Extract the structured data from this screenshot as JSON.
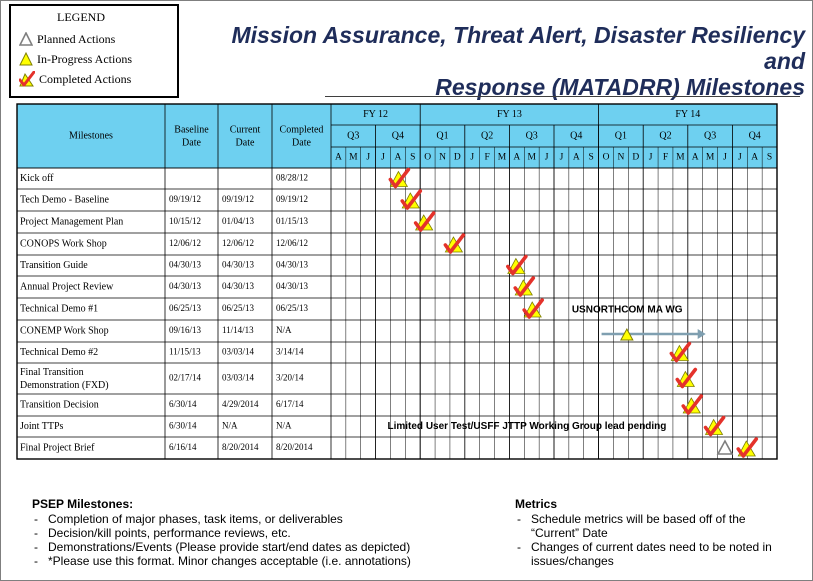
{
  "legend": {
    "title": "LEGEND",
    "items": [
      {
        "label": "Planned Actions",
        "icon": "planned-triangle-icon"
      },
      {
        "label": "In-Progress Actions",
        "icon": "in-progress-triangle-icon"
      },
      {
        "label": "Completed Actions",
        "icon": "completed-check-icon"
      }
    ]
  },
  "title": {
    "line1": "Mission Assurance, Threat Alert, Disaster Resiliency and",
    "line2": "Response (MATADRR) Milestones"
  },
  "table": {
    "headers": {
      "milestones": "Milestones",
      "baseline": [
        "Baseline",
        "Date"
      ],
      "current": [
        "Current",
        "Date"
      ],
      "completed": [
        "Completed",
        "Date"
      ]
    },
    "fiscal_years": [
      {
        "label": "FY 12",
        "months": 6
      },
      {
        "label": "FY 13",
        "months": 12
      },
      {
        "label": "FY 14",
        "months": 12
      }
    ],
    "quarters": [
      {
        "label": "Q3",
        "months": 3
      },
      {
        "label": "Q4",
        "months": 3
      },
      {
        "label": "Q1",
        "months": 3
      },
      {
        "label": "Q2",
        "months": 3
      },
      {
        "label": "Q3",
        "months": 3
      },
      {
        "label": "Q4",
        "months": 3
      },
      {
        "label": "Q1",
        "months": 3
      },
      {
        "label": "Q2",
        "months": 3
      },
      {
        "label": "Q3",
        "months": 3
      },
      {
        "label": "Q4",
        "months": 3
      }
    ],
    "months": [
      "A",
      "M",
      "J",
      "J",
      "A",
      "S",
      "O",
      "N",
      "D",
      "J",
      "F",
      "M",
      "A",
      "M",
      "J",
      "J",
      "A",
      "S",
      "O",
      "N",
      "D",
      "J",
      "F",
      "M",
      "A",
      "M",
      "J",
      "J",
      "A",
      "S"
    ],
    "rows": [
      {
        "name": "Kick off",
        "baseline": "",
        "current": "",
        "completed": "08/28/12"
      },
      {
        "name": "Tech Demo - Baseline",
        "baseline": "09/19/12",
        "current": "09/19/12",
        "completed": "09/19/12"
      },
      {
        "name": "Project Management Plan",
        "baseline": "10/15/12",
        "current": "01/04/13",
        "completed": "01/15/13"
      },
      {
        "name": "CONOPS Work Shop",
        "baseline": "12/06/12",
        "current": "12/06/12",
        "completed": "12/06/12"
      },
      {
        "name": "Transition Guide",
        "baseline": "04/30/13",
        "current": "04/30/13",
        "completed": "04/30/13"
      },
      {
        "name": "Annual Project Review",
        "baseline": "04/30/13",
        "current": "04/30/13",
        "completed": "04/30/13"
      },
      {
        "name": "Technical Demo #1",
        "baseline": "06/25/13",
        "current": "06/25/13",
        "completed": "06/25/13"
      },
      {
        "name": "CONEMP Work Shop",
        "baseline": "09/16/13",
        "current": "11/14/13",
        "completed": "N/A"
      },
      {
        "name": "Technical Demo #2",
        "baseline": "11/15/13",
        "current": "03/03/14",
        "completed": "3/14/14"
      },
      {
        "name": "Final Transition Demonstration (FXD)",
        "baseline": "02/17/14",
        "current": "03/03/14",
        "completed": "3/20/14"
      },
      {
        "name": "Transition Decision",
        "baseline": "6/30/14",
        "current": "4/29/2014",
        "completed": "6/17/14"
      },
      {
        "name": "Joint TTPs",
        "baseline": "6/30/14",
        "current": "N/A",
        "completed": "N/A"
      },
      {
        "name": "Final Project Brief",
        "baseline": "6/16/14",
        "current": "8/20/2014",
        "completed": "8/20/2014"
      }
    ],
    "annotations": [
      {
        "row": 7,
        "text": "USNORTHCOM  MA WG"
      },
      {
        "row": 11,
        "text": "Limited User Test/USFF JTTP Working Group lead pending"
      }
    ]
  },
  "psep": {
    "heading": "PSEP Milestones:",
    "items": [
      "Completion of major phases, task items, or deliverables",
      "Decision/kill points, performance reviews, etc.",
      "Demonstrations/Events (Please provide start/end dates as depicted)",
      "*Please use this format.  Minor changes acceptable (i.e. annotations)"
    ]
  },
  "metrics": {
    "heading": "Metrics",
    "items": [
      "Schedule metrics will be based off of the “Current” Date",
      "Changes of current dates need to be noted in issues/changes"
    ]
  },
  "colors": {
    "header_fill": "#6ed0f0",
    "title": "#1f2d5a",
    "check": "#e4322b",
    "in_progress": "#ffff00",
    "arrow": "#7f9fb0"
  }
}
